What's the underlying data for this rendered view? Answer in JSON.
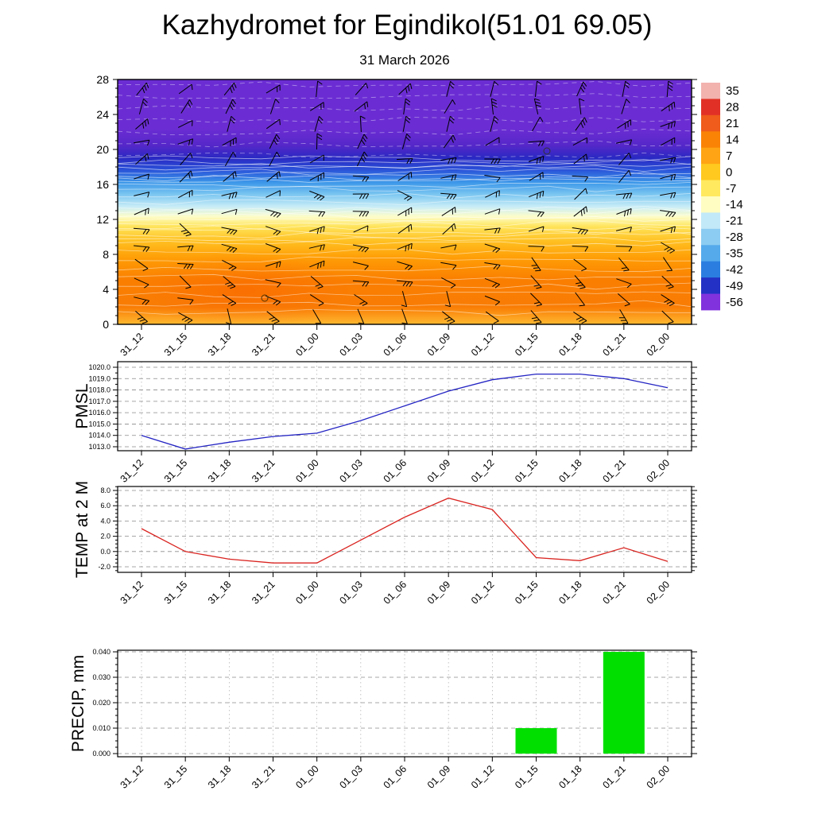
{
  "title": "Kazhydromet for Egindikol(51.01 69.05)",
  "subtitle": "31 March 2026",
  "time_labels": [
    "31_12",
    "31_15",
    "31_18",
    "31_21",
    "01_00",
    "01_03",
    "01_06",
    "01_09",
    "01_12",
    "01_15",
    "01_18",
    "01_21",
    "02_00"
  ],
  "chart_data": [
    {
      "type": "heatmap",
      "name": "temperature-height-cross-section",
      "x": [
        "31_12",
        "31_15",
        "31_18",
        "31_21",
        "01_00",
        "01_03",
        "01_06",
        "01_09",
        "01_12",
        "01_15",
        "01_18",
        "01_21",
        "02_00"
      ],
      "y_ticks": [
        0,
        4,
        8,
        12,
        16,
        20,
        24,
        28
      ],
      "y_range": [
        0,
        28
      ],
      "overlay": "wind-barbs",
      "legend_labels": [
        "35",
        "28",
        "21",
        "14",
        "7",
        "0",
        "-7",
        "-14",
        "-21",
        "-28",
        "-35",
        "-42",
        "-49",
        "-56"
      ],
      "legend_colors": [
        "#f2b2ae",
        "#e13127",
        "#ef5c1b",
        "#fa8305",
        "#ffa414",
        "#ffc91f",
        "#ffe95f",
        "#fffdc2",
        "#c2e9f8",
        "#8cccf2",
        "#55aaec",
        "#2b7ee0",
        "#2331c5",
        "#8132dc"
      ],
      "gradient": [
        {
          "pos": 0.0,
          "color": "#6b2dd3"
        },
        {
          "pos": 0.2,
          "color": "#6b2dd3"
        },
        {
          "pos": 0.27,
          "color": "#5527c9"
        },
        {
          "pos": 0.32,
          "color": "#2a29c3"
        },
        {
          "pos": 0.37,
          "color": "#2a53d9"
        },
        {
          "pos": 0.42,
          "color": "#3c97e9"
        },
        {
          "pos": 0.47,
          "color": "#7cc7f1"
        },
        {
          "pos": 0.52,
          "color": "#c9edf7"
        },
        {
          "pos": 0.56,
          "color": "#fdfdc9"
        },
        {
          "pos": 0.6,
          "color": "#ffe45b"
        },
        {
          "pos": 0.66,
          "color": "#ffc021"
        },
        {
          "pos": 0.73,
          "color": "#ff9d06"
        },
        {
          "pos": 0.82,
          "color": "#fa7e00"
        },
        {
          "pos": 0.93,
          "color": "#f97d05"
        },
        {
          "pos": 1.0,
          "color": "#ffb931"
        }
      ]
    },
    {
      "type": "line",
      "name": "pmsl",
      "ylabel": "PMSL",
      "color": "#2424c4",
      "x": [
        "31_12",
        "31_15",
        "31_18",
        "31_21",
        "01_00",
        "01_03",
        "01_06",
        "01_09",
        "01_12",
        "01_15",
        "01_18",
        "01_21",
        "02_00"
      ],
      "values": [
        1014.0,
        1012.8,
        1013.4,
        1013.9,
        1014.2,
        1015.3,
        1016.6,
        1017.9,
        1018.9,
        1019.4,
        1019.4,
        1019.0,
        1018.2
      ],
      "y_ticks": [
        1013.0,
        1014.0,
        1015.0,
        1016.0,
        1017.0,
        1018.0,
        1019.0,
        1020.0
      ],
      "ylim": [
        1012.6,
        1020.5
      ]
    },
    {
      "type": "line",
      "name": "temp2m",
      "ylabel": "TEMP at 2 M",
      "color": "#d92420",
      "x": [
        "31_12",
        "31_15",
        "31_18",
        "31_21",
        "01_00",
        "01_03",
        "01_06",
        "01_09",
        "01_12",
        "01_15",
        "01_18",
        "01_21",
        "02_00"
      ],
      "values": [
        3.0,
        0.0,
        -1.0,
        -1.5,
        -1.5,
        1.5,
        4.5,
        7.0,
        5.5,
        -0.8,
        -1.2,
        0.5,
        -1.3
      ],
      "y_ticks": [
        -2.0,
        0.0,
        2.0,
        4.0,
        6.0,
        8.0
      ],
      "ylim": [
        -2.7,
        8.5
      ]
    },
    {
      "type": "bar",
      "name": "precip",
      "ylabel": "PRECIP, mm",
      "color": "#00df00",
      "x": [
        "31_12",
        "31_15",
        "31_18",
        "31_21",
        "01_00",
        "01_03",
        "01_06",
        "01_09",
        "01_12",
        "01_15",
        "01_18",
        "01_21",
        "02_00"
      ],
      "values": [
        0,
        0,
        0,
        0,
        0,
        0,
        0,
        0,
        0,
        0.01,
        0,
        0.04,
        0
      ],
      "y_ticks": [
        0.0,
        0.01,
        0.02,
        0.03,
        0.04
      ],
      "ylim": [
        0,
        0.0406
      ]
    }
  ]
}
